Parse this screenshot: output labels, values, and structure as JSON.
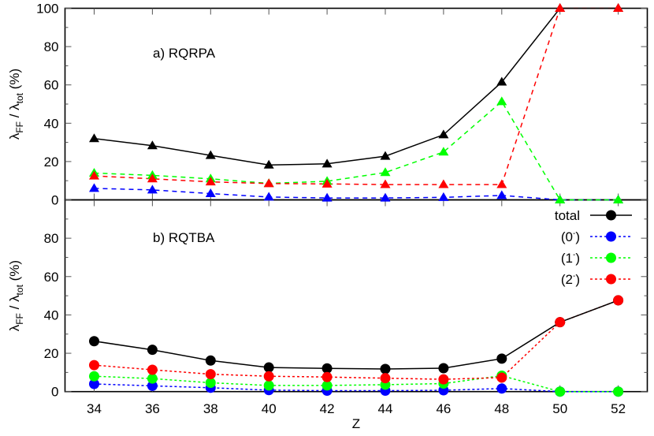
{
  "chart_data": [
    {
      "type": "line",
      "panel": "top",
      "title": "a) RQRPA",
      "xlabel": "Z",
      "ylabel": "λFF / λtot (%)",
      "ylim": [
        0,
        100
      ],
      "yticks": [
        0,
        20,
        40,
        60,
        80,
        100
      ],
      "x": [
        34,
        36,
        38,
        40,
        42,
        44,
        46,
        48,
        50,
        52
      ],
      "marker": "triangle",
      "line_style": "dashed",
      "series": [
        {
          "name": "total",
          "color": "#000000",
          "values": [
            32.0,
            28.3,
            23.2,
            18.2,
            18.8,
            22.8,
            34.0,
            61.5,
            100,
            100
          ]
        },
        {
          "name": "(0-)",
          "color": "#0000ff",
          "values": [
            6.0,
            5.2,
            3.3,
            1.5,
            1.0,
            1.0,
            1.3,
            2.3,
            0,
            0
          ]
        },
        {
          "name": "(1-)",
          "color": "#00ff00",
          "values": [
            14.0,
            12.8,
            11.0,
            8.6,
            9.7,
            14.3,
            25.0,
            51.3,
            0,
            0
          ]
        },
        {
          "name": "(2-)",
          "color": "#ff0000",
          "values": [
            12.5,
            11.0,
            9.4,
            8.5,
            8.3,
            8.0,
            8.0,
            8.0,
            100,
            100
          ]
        }
      ]
    },
    {
      "type": "line",
      "panel": "bottom",
      "title": "b) RQTBA",
      "xlabel": "Z",
      "ylabel": "λFF / λtot (%)",
      "ylim": [
        0,
        100
      ],
      "yticks": [
        0,
        20,
        40,
        60,
        80
      ],
      "x": [
        34,
        36,
        38,
        40,
        42,
        44,
        46,
        48,
        50,
        52
      ],
      "marker": "circle",
      "line_style": "dotted",
      "series": [
        {
          "name": "total",
          "color": "#000000",
          "values": [
            26.3,
            21.8,
            16.2,
            12.6,
            12.1,
            11.8,
            12.2,
            17.2,
            36.2,
            47.6
          ]
        },
        {
          "name": "(0-)",
          "color": "#0000ff",
          "values": [
            4.0,
            3.0,
            2.0,
            0.8,
            0.5,
            0.5,
            0.7,
            1.6,
            0,
            0
          ]
        },
        {
          "name": "(1-)",
          "color": "#00ff00",
          "values": [
            8.0,
            6.8,
            4.6,
            3.2,
            3.2,
            3.6,
            4.2,
            8.3,
            0,
            0
          ]
        },
        {
          "name": "(2-)",
          "color": "#ff0000",
          "values": [
            13.8,
            11.4,
            9.1,
            8.0,
            7.6,
            7.0,
            6.4,
            7.3,
            36.2,
            47.6
          ]
        }
      ],
      "legend": {
        "position": "top-right",
        "entries": [
          {
            "label": "total",
            "color": "#000000",
            "style": "solid"
          },
          {
            "label": "(0-)",
            "color": "#0000ff",
            "style": "dotted"
          },
          {
            "label": "(1-)",
            "color": "#00ff00",
            "style": "dotted"
          },
          {
            "label": "(2-)",
            "color": "#ff0000",
            "style": "dotted"
          }
        ]
      }
    }
  ],
  "labels": {
    "top_panel": "a) RQRPA",
    "bottom_panel": "b) RQTBA",
    "xlabel": "Z",
    "ylabel_main": "λ",
    "ylabel_sub1": "FF",
    "ylabel_mid": " / λ",
    "ylabel_sub2": "tot",
    "ylabel_tail": " (%)"
  },
  "legend": {
    "total": "total",
    "zero_base": "(0",
    "one_base": "(1",
    "two_base": "(2",
    "sup": "-",
    "close": ")"
  }
}
